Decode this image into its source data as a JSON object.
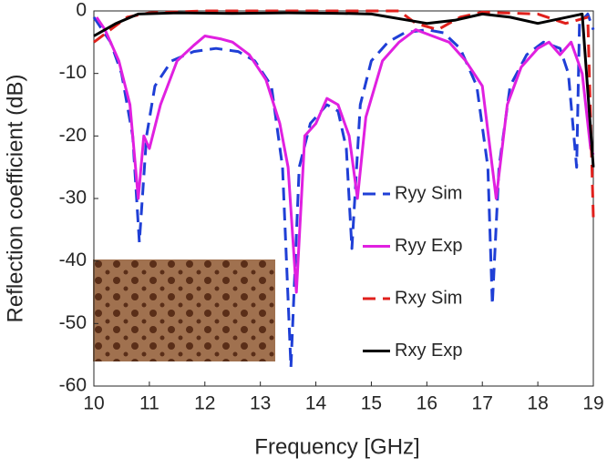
{
  "chart_data": {
    "type": "line",
    "x_label": "Frequency [GHz]",
    "y_label": "Reflection coefficient (dB)",
    "xlim": [
      10,
      19
    ],
    "xticks": [
      10,
      11,
      12,
      13,
      14,
      15,
      16,
      17,
      18,
      19
    ],
    "ylim": [
      -60,
      0
    ],
    "yticks": [
      -60,
      -50,
      -40,
      -30,
      -20,
      -10,
      0
    ],
    "grid": false,
    "series": [
      {
        "name": "Ryy Sim",
        "color": "#1f3fd6",
        "linestyle": "dashed",
        "x": [
          10.0,
          10.3,
          10.5,
          10.7,
          10.82,
          10.95,
          11.1,
          11.4,
          11.8,
          12.2,
          12.6,
          12.9,
          13.2,
          13.4,
          13.55,
          13.7,
          13.9,
          14.2,
          14.4,
          14.55,
          14.65,
          14.8,
          15.0,
          15.3,
          15.6,
          16.0,
          16.3,
          16.6,
          16.9,
          17.1,
          17.18,
          17.3,
          17.5,
          17.8,
          18.1,
          18.4,
          18.55,
          18.7,
          18.75,
          18.9,
          19.0
        ],
        "values": [
          -1,
          -5,
          -10,
          -20,
          -37,
          -20,
          -12,
          -8,
          -6.5,
          -6,
          -6.5,
          -8,
          -12,
          -25,
          -57,
          -25,
          -18,
          -15,
          -16,
          -22,
          -38,
          -15,
          -8,
          -5,
          -3.5,
          -3,
          -3.5,
          -6,
          -12,
          -25,
          -47,
          -25,
          -12,
          -7,
          -5,
          -6,
          -10,
          -25,
          -2,
          -0.5,
          -3
        ]
      },
      {
        "name": "Ryy Exp",
        "color": "#e020e0",
        "linestyle": "solid",
        "x": [
          10.05,
          10.2,
          10.45,
          10.65,
          10.8,
          10.9,
          11.0,
          11.2,
          11.5,
          11.8,
          12.0,
          12.3,
          12.5,
          12.8,
          13.1,
          13.35,
          13.5,
          13.65,
          13.8,
          14.0,
          14.2,
          14.4,
          14.6,
          14.75,
          14.9,
          15.2,
          15.5,
          15.8,
          16.1,
          16.4,
          16.7,
          17.0,
          17.25,
          17.45,
          17.7,
          18.0,
          18.2,
          18.4,
          18.6,
          18.8,
          18.95,
          19.0
        ],
        "values": [
          -1,
          -3,
          -8,
          -15,
          -30,
          -20,
          -22,
          -15,
          -8,
          -5.5,
          -4,
          -4.5,
          -5,
          -7,
          -11,
          -18,
          -25,
          -45,
          -20,
          -18,
          -14,
          -15,
          -20,
          -30,
          -17,
          -8,
          -5,
          -3,
          -4,
          -5,
          -8,
          -12,
          -30,
          -15,
          -9,
          -6,
          -5,
          -7,
          -5,
          -10,
          -22,
          -23
        ]
      },
      {
        "name": "Rxy Sim",
        "color": "#e0201c",
        "linestyle": "dashed",
        "x": [
          10.0,
          10.3,
          10.6,
          11.0,
          12.0,
          13.0,
          14.0,
          15.0,
          15.5,
          15.8,
          16.2,
          16.6,
          17.0,
          18.0,
          18.5,
          18.9,
          19.0
        ],
        "values": [
          -5,
          -3,
          -1,
          -0.3,
          0,
          0,
          0,
          0,
          0,
          -2,
          -3,
          -1,
          -0.2,
          -0.5,
          -2,
          -1,
          -33
        ]
      },
      {
        "name": "Rxy Exp",
        "color": "#000000",
        "linestyle": "solid",
        "x": [
          10.0,
          10.4,
          10.8,
          11.5,
          12.5,
          13.5,
          14.5,
          15.0,
          16.0,
          16.5,
          17.0,
          17.5,
          18.0,
          18.8,
          19.0
        ],
        "values": [
          -4,
          -2,
          -0.5,
          -0.3,
          -0.4,
          -0.3,
          -0.4,
          -0.5,
          -2,
          -1.5,
          -0.5,
          -1,
          -2,
          -0.5,
          -25
        ]
      }
    ]
  }
}
